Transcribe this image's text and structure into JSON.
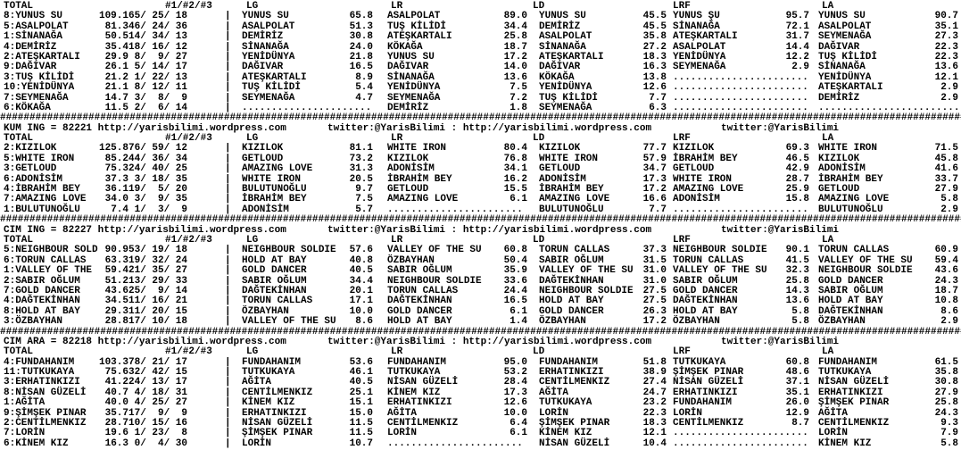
{
  "pipe": "|",
  "hash_line": "######################################################################################################################################################################",
  "columns": {
    "total": "TOTAL",
    "p123": "#1/#2/#3",
    "lg": "LG",
    "lr": "LR",
    "ld": "LD",
    "lrf": "LRF",
    "la": "LA"
  },
  "colors": {
    "background": "#ffffff",
    "text": "#000000"
  },
  "sections": [
    {
      "info": null,
      "hash_after": true,
      "rows": [
        {
          "n": "8:YUNUS SU",
          "t": "109.1",
          "p": "65/ 25/ 18",
          "lgn": "YUNUS SU",
          "lgv": "65.8",
          "lrn": "ASALPOLAT",
          "lrv": "89.0",
          "ldn": "YUNUS SU",
          "ldv": "45.5",
          "lfn": "YUNUS ŞU",
          "lfv": "95.7",
          "lan": "YUNUS SU",
          "lav": "90.7"
        },
        {
          "n": "5:ASALPOLAT",
          "t": "81.3",
          "p": "46/ 24/ 36",
          "lgn": "ASALPOLAT",
          "lgv": "51.3",
          "lrn": "TUŞ KİLİDİ",
          "lrv": "34.4",
          "ldn": "DEMİRİZ",
          "ldv": "45.5",
          "lfn": "SİNANAĞA",
          "lfv": "72.1",
          "lan": "ASALPOLAT",
          "lav": "35.1"
        },
        {
          "n": "1:SİNANAĞA",
          "t": "50.5",
          "p": "14/ 34/ 13",
          "lgn": "DEMİRİZ",
          "lgv": "30.8",
          "lrn": "ATEŞKARTALI",
          "lrv": "25.8",
          "ldn": "ASALPOLAT",
          "ldv": "35.8",
          "lfn": "ATEŞKARTALI",
          "lfv": "31.7",
          "lan": "SEYMENAĞA",
          "lav": "27.3"
        },
        {
          "n": "4:DEMİRİZ",
          "t": "35.4",
          "p": "18/ 16/ 12",
          "lgn": "SİNANAĞA",
          "lgv": "24.0",
          "lrn": "KÖKAĞA",
          "lrv": "18.7",
          "ldn": "SİNANAĞA",
          "ldv": "27.2",
          "lfn": "ASALPOLAT",
          "lfv": "14.4",
          "lan": "DAĞIVAR",
          "lav": "22.3"
        },
        {
          "n": "2:ATEŞKARTALI",
          "t": "29.9",
          "p": " 8/  9/ 27",
          "lgn": "YENİDÜNYA",
          "lgv": "21.8",
          "lrn": "YUNUS SU",
          "lrv": "17.2",
          "ldn": "ATEŞKARTALI",
          "ldv": "18.3",
          "lfn": "YENİDÜNYA",
          "lfv": "12.2",
          "lan": "TUŞ KİLİDİ",
          "lav": "22.3"
        },
        {
          "n": "9:DAĞIVAR",
          "t": "26.1",
          "p": " 5/ 14/ 17",
          "lgn": "DAĞIVAR",
          "lgv": "16.5",
          "lrn": "DAĞIVAR",
          "lrv": "14.0",
          "ldn": "DAĞIVAR",
          "ldv": "16.3",
          "lfn": "SEYMENAĞA",
          "lfv": "2.9",
          "lan": "SİNANAĞA",
          "lav": "13.6"
        },
        {
          "n": "3:TUŞ KİLİDİ",
          "t": "21.2",
          "p": " 1/ 22/ 13",
          "lgn": "ATEŞKARTALI",
          "lgv": "8.9",
          "lrn": "SİNANAĞA",
          "lrv": "13.6",
          "ldn": "KÖKAĞA",
          "ldv": "13.8",
          "lfn": ".......................",
          "lfv": "",
          "lan": "YENİDÜNYA",
          "lav": "12.1"
        },
        {
          "n": "10:YENİDÜNYA",
          "t": "21.1",
          "p": " 8/ 12/ 11",
          "lgn": "TUŞ KİLİDİ",
          "lgv": "5.4",
          "lrn": "YENİDÜNYA",
          "lrv": "7.5",
          "ldn": "YENİDÜNYA",
          "ldv": "12.6",
          "lfn": ".......................",
          "lfv": "",
          "lan": "ATEŞKARTALI",
          "lav": "2.9"
        },
        {
          "n": "7:SEYMENAĞA",
          "t": "14.7",
          "p": " 3/  8/  9",
          "lgn": "SEYMENAĞA",
          "lgv": "4.7",
          "lrn": "SEYMENAĞA",
          "lrv": "7.2",
          "ldn": "TUŞ KİLİDİ",
          "ldv": "7.7",
          "lfn": ".......................",
          "lfv": "",
          "lan": "DEMİRİZ",
          "lav": "2.9"
        },
        {
          "n": "6:KÖKAĞA",
          "t": "11.5",
          "p": " 2/  6/ 14",
          "lgn": "......................",
          "lgv": "",
          "lrn": "DEMİRİZ",
          "lrv": "1.8",
          "ldn": "SEYMENAĞA",
          "ldv": "6.3",
          "lfn": ".......................",
          "lfv": "",
          "lan": "........................",
          "lav": ""
        }
      ]
    },
    {
      "info": {
        "left": "KUM ING = 82221 http://yarisbilimi.wordpress.com",
        "mid": "twitter:@YarisBilimi : http://yarisbilimi.wordpress.com",
        "right": "twitter:@YarisBilimi"
      },
      "hash_after": true,
      "rows": [
        {
          "n": "2:KIZILOK",
          "t": "125.8",
          "p": "76/ 59/ 12",
          "lgn": "KIZILOK",
          "lgv": "81.1",
          "lrn": "WHITE IRON",
          "lrv": "80.4",
          "ldn": "KIZILOK",
          "ldv": "77.7",
          "lfn": "KIZILOK",
          "lfv": "69.3",
          "lan": "WHITE IRON",
          "lav": "71.5"
        },
        {
          "n": "5:WHITE IRON",
          "t": "85.2",
          "p": "44/ 36/ 34",
          "lgn": "GETLOUD",
          "lgv": "73.2",
          "lrn": "KIZILOK",
          "lrv": "76.8",
          "ldn": "WHITE IRON",
          "ldv": "57.9",
          "lfn": "İBRAHİM BEY",
          "lfv": "46.5",
          "lan": "KIZILOK",
          "lav": "45.8"
        },
        {
          "n": "3:GETLOUD",
          "t": "75.3",
          "p": "24/ 40/ 25",
          "lgn": "AMAZING LOVE",
          "lgv": "31.3",
          "lrn": "ADONİSİM",
          "lrv": "34.1",
          "ldn": "GETLOUD",
          "ldv": "34.7",
          "lfn": "GETLOUD",
          "lfv": "42.9",
          "lan": "ADONİSİM",
          "lav": "41.6"
        },
        {
          "n": "6:ADONİSİM",
          "t": "37.3",
          "p": " 3/ 18/ 35",
          "lgn": "WHITE IRON",
          "lgv": "20.5",
          "lrn": "İBRAHİM BEY",
          "lrv": "16.2",
          "ldn": "ADONİSİM",
          "ldv": "17.3",
          "lfn": "WHITE IRON",
          "lfv": "28.7",
          "lan": "İBRAHİM BEY",
          "lav": "33.7"
        },
        {
          "n": "4:İBRAHİM BEY",
          "t": "36.1",
          "p": "19/  5/ 20",
          "lgn": "BULUTUNOĞLU",
          "lgv": "9.7",
          "lrn": "GETLOUD",
          "lrv": "15.5",
          "ldn": "İBRAHİM BEY",
          "ldv": "17.2",
          "lfn": "AMAZING LOVE",
          "lfv": "25.9",
          "lan": "GETLOUD",
          "lav": "27.9"
        },
        {
          "n": "7:AMAZING LOVE",
          "t": "34.0",
          "p": " 3/  9/ 35",
          "lgn": "İBRAHİM BEY",
          "lgv": "7.5",
          "lrn": "AMAZING LOVE",
          "lrv": "6.1",
          "ldn": "AMAZING LOVE",
          "ldv": "16.6",
          "lfn": "ADONİSİM",
          "lfv": "15.8",
          "lan": "AMAZING LOVE",
          "lav": "5.8"
        },
        {
          "n": "1:BULUTUNOĞLU",
          "t": "7.4",
          "p": " 1/  3/  9",
          "lgn": "ADONİSİM",
          "lgv": "5.7",
          "lrn": ".......................",
          "lrv": "",
          "ldn": "BULUTUNOĞLU",
          "ldv": "7.7",
          "lfn": ".......................",
          "lfv": "",
          "lan": "BULUTUNOĞLU",
          "lav": "2.9"
        }
      ]
    },
    {
      "info": {
        "left": "CIM ING = 82227 http://yarisbilimi.wordpress.com",
        "mid": "twitter:@YarisBilimi : http://yarisbilimi.wordpress.com",
        "right": "twitter:@YarisBilimi"
      },
      "hash_after": true,
      "rows": [
        {
          "n": "5:NEIGHBOUR SOLD",
          "t": "90.9",
          "p": "53/ 19/ 18",
          "lgn": "NEIGHBOUR SOLDIE",
          "lgv": "57.6",
          "lrn": "VALLEY OF THE SU",
          "lrv": "60.8",
          "ldn": "TORUN CALLAS",
          "ldv": "37.3",
          "lfn": "NEIGHBOUR SOLDIE",
          "lfv": "90.1",
          "lan": "TORUN CALLAS",
          "lav": "60.9"
        },
        {
          "n": "6:TORUN CALLAS",
          "t": "63.3",
          "p": "19/ 32/ 24",
          "lgn": "HOLD AT BAY",
          "lgv": "40.8",
          "lrn": "ÖZBAYHAN",
          "lrv": "50.4",
          "ldn": "SABIR OĞLUM",
          "ldv": "31.5",
          "lfn": "TORUN CALLAS",
          "lfv": "41.5",
          "lan": "VALLEY OF THE SU",
          "lav": "59.4"
        },
        {
          "n": "1:VALLEY OF THE",
          "t": "59.4",
          "p": "21/ 35/ 27",
          "lgn": "GOLD DANCER",
          "lgv": "40.5",
          "lrn": "SABIR OĞLUM",
          "lrv": "35.9",
          "ldn": "VALLEY OF THE SU",
          "ldv": "31.0",
          "lfn": "VALLEY OF THE SU",
          "lfv": "32.3",
          "lan": "NEIGHBOUR SOLDIE",
          "lav": "43.6"
        },
        {
          "n": "2:SABIR OĞLUM",
          "t": "51.2",
          "p": "13/ 29/ 33",
          "lgn": "SABIR OĞLUM",
          "lgv": "34.4",
          "lrn": "NEIGHBOUR SOLDIE",
          "lrv": "33.6",
          "ldn": "DAĞTEKİNHAN",
          "ldv": "31.0",
          "lfn": "SABIR OĞLUM",
          "lfv": "25.8",
          "lan": "GOLD DANCER",
          "lav": "24.3"
        },
        {
          "n": "7:GOLD DANCER",
          "t": "43.6",
          "p": "25/  9/ 14",
          "lgn": "DAĞTEKİNHAN",
          "lgv": "20.1",
          "lrn": "TORUN CALLAS",
          "lrv": "24.4",
          "ldn": "NEIGHBOUR SOLDIE",
          "ldv": "27.5",
          "lfn": "GOLD DANCER",
          "lfv": "14.3",
          "lan": "SABIR OĞLUM",
          "lav": "18.7"
        },
        {
          "n": "4:DAĞTEKİNHAN",
          "t": "34.5",
          "p": "11/ 16/ 21",
          "lgn": "TORUN CALLAS",
          "lgv": "17.1",
          "lrn": "DAĞTEKİNHAN",
          "lrv": "16.5",
          "ldn": "HOLD AT BAY",
          "ldv": "27.5",
          "lfn": "DAĞTEKİNHAN",
          "lfv": "13.6",
          "lan": "HOLD AT BAY",
          "lav": "10.8"
        },
        {
          "n": "8:HOLD AT BAY",
          "t": "29.3",
          "p": "11/ 20/ 15",
          "lgn": "ÖZBAYHAN",
          "lgv": "10.0",
          "lrn": "GOLD DANCER",
          "lrv": "6.1",
          "ldn": "GOLD DANCER",
          "ldv": "26.3",
          "lfn": "HOLD AT BAY",
          "lfv": "5.8",
          "lan": "DAĞTEKİNHAN",
          "lav": "8.6"
        },
        {
          "n": "3:ÖZBAYHAN",
          "t": "28.8",
          "p": "17/ 10/ 18",
          "lgn": "VALLEY OF THE SU",
          "lgv": "8.6",
          "lrn": "HOLD AT BAY",
          "lrv": "1.4",
          "ldn": "ÖZBAYHAN",
          "ldv": "17.2",
          "lfn": "ÖZBAYHAN",
          "lfv": "5.8",
          "lan": "ÖZBAYHAN",
          "lav": "2.9"
        }
      ]
    },
    {
      "info": {
        "left": "CIM ARA = 82218 http://yarisbilimi.wordpress.com",
        "mid": "twitter:@YarisBilimi : http://yarisbilimi.wordpress.com",
        "right": "twitter:@YarisBilimi"
      },
      "hash_after": false,
      "rows": [
        {
          "n": "4:FUNDAHANIM",
          "t": "103.3",
          "p": "78/ 21/ 17",
          "lgn": "FUNDAHANIM",
          "lgv": "53.6",
          "lrn": "FUNDAHANIM",
          "lrv": "95.0",
          "ldn": "FUNDAHANIM",
          "ldv": "51.8",
          "lfn": "TUTKUKAYA",
          "lfv": "60.8",
          "lan": "FUNDAHANIM",
          "lav": "61.5"
        },
        {
          "n": "11:TUTKUKAYA",
          "t": "75.6",
          "p": "32/ 42/ 15",
          "lgn": "TUTKUKAYA",
          "lgv": "46.1",
          "lrn": "TUTKUKAYA",
          "lrv": "53.2",
          "ldn": "ERHATINKIZI",
          "ldv": "38.9",
          "lfn": "ŞİMŞEK PINAR",
          "lfv": "48.6",
          "lan": "TUTKUKAYA",
          "lav": "35.8"
        },
        {
          "n": "3:ERHATINKIZI",
          "t": "41.2",
          "p": "24/ 13/ 17",
          "lgn": "AĞİTA",
          "lgv": "40.5",
          "lrn": "NİSAN GÜZELİ",
          "lrv": "28.4",
          "ldn": "CENTİLMENKIZ",
          "ldv": "27.4",
          "lfn": "NİSAN GÜZELİ",
          "lfv": "37.1",
          "lan": "NİSAN GÜZELİ",
          "lav": "30.8"
        },
        {
          "n": "8:NİSAN GÜZELİ",
          "t": "40.7",
          "p": " 4/ 18/ 31",
          "lgn": "CENTİLMENKIZ",
          "lgv": "25.1",
          "lrn": "KİNEM KIZ",
          "lrv": "17.3",
          "ldn": "AĞİTA",
          "ldv": "24.7",
          "lfn": "ERHATINKIZI",
          "lfv": "35.1",
          "lan": "ERHATINKIZI",
          "lav": "27.9"
        },
        {
          "n": "1:AĞİTA",
          "t": "40.0",
          "p": " 4/ 25/ 27",
          "lgn": "KİNEM KIZ",
          "lgv": "15.1",
          "lrn": "ERHATINKIZI",
          "lrv": "12.6",
          "ldn": "TUTKUKAYA",
          "ldv": "23.2",
          "lfn": "FUNDAHANIM",
          "lfv": "26.0",
          "lan": "ŞİMŞEK PINAR",
          "lav": "25.8"
        },
        {
          "n": "9:ŞİMŞEK PINAR",
          "t": "35.7",
          "p": "17/  9/  9",
          "lgn": "ERHATINKIZI",
          "lgv": "15.0",
          "lrn": "AĞİTA",
          "lrv": "10.0",
          "ldn": "LORİN",
          "ldv": "22.3",
          "lfn": "LORİN",
          "lfv": "12.9",
          "lan": "AĞİTA",
          "lav": "24.3"
        },
        {
          "n": "2:CENTİLMENKIZ",
          "t": "28.7",
          "p": "10/ 15/ 16",
          "lgn": "NİSAN GÜZELİ",
          "lgv": "11.5",
          "lrn": "CENTİLMENKIZ",
          "lrv": "6.4",
          "ldn": "ŞİMŞEK PINAR",
          "ldv": "18.3",
          "lfn": "CENTİLMENKIZ",
          "lfv": "8.7",
          "lan": "CENTİLMENKIZ",
          "lav": "9.3"
        },
        {
          "n": "7:LORİN",
          "t": "19.6",
          "p": " 1/ 23/  8",
          "lgn": "ŞİMŞEK PINAR",
          "lgv": "11.5",
          "lrn": "LORİN",
          "lrv": "6.1",
          "ldn": "KİNEM KIZ",
          "ldv": "12.1",
          "lfn": ".......................",
          "lfv": "",
          "lan": "LORİN",
          "lav": "7.9"
        },
        {
          "n": "6:KİNEM KIZ",
          "t": "16.3",
          "p": " 0/  4/ 30",
          "lgn": "LORİN",
          "lgv": "10.7",
          "lrn": ".......................",
          "lrv": "",
          "ldn": "NİSAN GÜZELİ",
          "ldv": "10.4",
          "lfn": ".......................",
          "lfv": "",
          "lan": "KİNEM KIZ",
          "lav": "5.8"
        }
      ]
    }
  ]
}
